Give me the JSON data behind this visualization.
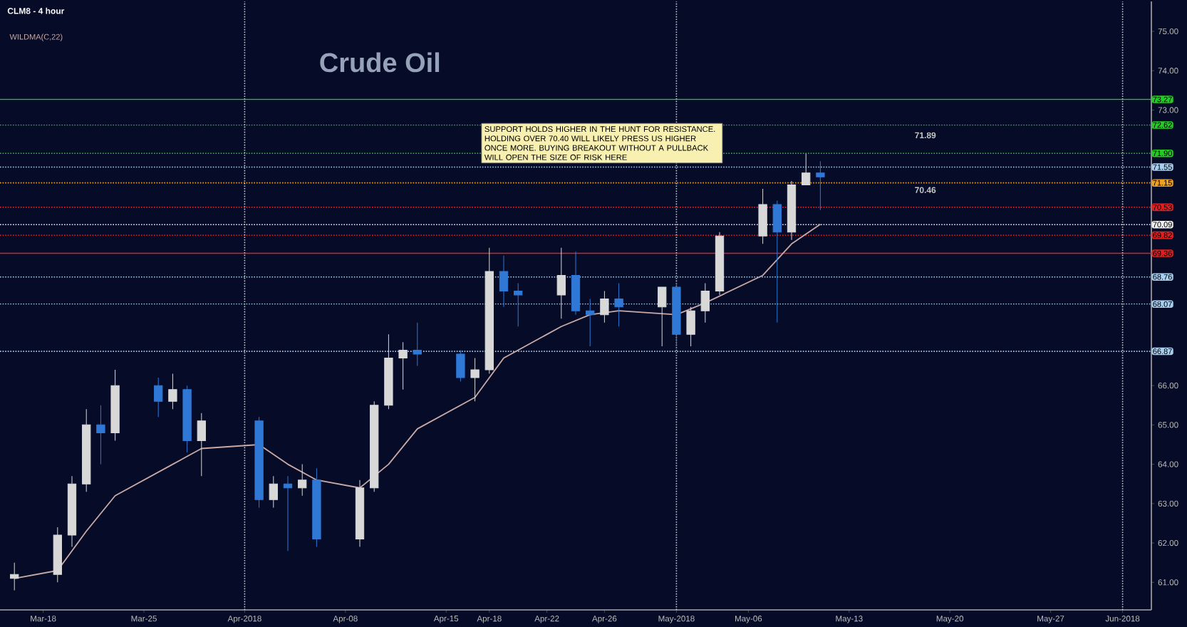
{
  "chart_data": {
    "type": "candlestick",
    "title": "Crude Oil",
    "subtitle": "CLM8 - 4 hour",
    "legend": "top left",
    "xlim": [
      "2018-03-15",
      "2018-06-03"
    ],
    "xticks": [
      {
        "value": "2018-03-18",
        "label": "Mar-18"
      },
      {
        "value": "2018-03-25",
        "label": "Mar-25"
      },
      {
        "value": "2018-04-01",
        "label": "Apr-2018"
      },
      {
        "value": "2018-04-08",
        "label": "Apr-08"
      },
      {
        "value": "2018-04-15",
        "label": "Apr-15"
      },
      {
        "value": "2018-04-18",
        "label": "Apr-18"
      },
      {
        "value": "2018-04-22",
        "label": "Apr-22"
      },
      {
        "value": "2018-04-26",
        "label": "Apr-26"
      },
      {
        "value": "2018-05-01",
        "label": "May-2018"
      },
      {
        "value": "2018-05-06",
        "label": "May-06"
      },
      {
        "value": "2018-05-13",
        "label": "May-13"
      },
      {
        "value": "2018-05-20",
        "label": "May-20"
      },
      {
        "value": "2018-05-27",
        "label": "May-27"
      },
      {
        "value": "2018-06-01",
        "label": "Jun-2018"
      }
    ],
    "ylim": [
      60.3,
      75.76
    ],
    "yticks": [
      {
        "value": 61,
        "label": "61.00"
      },
      {
        "value": 62,
        "label": "62.00"
      },
      {
        "value": 63,
        "label": "63.00"
      },
      {
        "value": 64,
        "label": "64.00"
      },
      {
        "value": 65,
        "label": "65.00"
      },
      {
        "value": 66,
        "label": "66.00"
      },
      {
        "value": 73,
        "label": "73.00"
      },
      {
        "value": 74,
        "label": "74.00"
      },
      {
        "value": 75,
        "label": "75.00"
      }
    ],
    "series": [
      {
        "type": "line",
        "name": "WILDMA(C,22)",
        "color": "#c9a9a6",
        "x": [
          "2018-03-16",
          "2018-03-19",
          "2018-03-21",
          "2018-03-23",
          "2018-03-27",
          "2018-03-29",
          "2018-04-02",
          "2018-04-04",
          "2018-04-06",
          "2018-04-09",
          "2018-04-11",
          "2018-04-13",
          "2018-04-17",
          "2018-04-19",
          "2018-04-23",
          "2018-04-25",
          "2018-04-27",
          "2018-05-01",
          "2018-05-03",
          "2018-05-07",
          "2018-05-09",
          "2018-05-11"
        ],
        "values": [
          61.1,
          61.3,
          62.3,
          63.2,
          64.0,
          64.4,
          64.5,
          64.0,
          63.6,
          63.4,
          64.0,
          64.9,
          65.7,
          66.7,
          67.5,
          67.8,
          67.9,
          67.8,
          68.1,
          68.8,
          69.6,
          70.1
        ]
      },
      {
        "x": [
          "2018-03-16",
          "2018-03-19",
          "2018-03-20",
          "2018-03-21",
          "2018-03-22",
          "2018-03-23",
          "2018-03-26",
          "2018-03-27",
          "2018-03-28",
          "2018-03-29",
          "2018-04-02",
          "2018-04-03",
          "2018-04-04",
          "2018-04-05",
          "2018-04-06",
          "2018-04-09",
          "2018-04-10",
          "2018-04-11",
          "2018-04-12",
          "2018-04-13",
          "2018-04-16",
          "2018-04-17",
          "2018-04-18",
          "2018-04-19",
          "2018-04-20",
          "2018-04-23",
          "2018-04-24",
          "2018-04-25",
          "2018-04-26",
          "2018-04-27",
          "2018-04-30",
          "2018-05-01",
          "2018-05-02",
          "2018-05-03",
          "2018-05-04",
          "2018-05-07",
          "2018-05-08",
          "2018-05-09",
          "2018-05-10",
          "2018-05-11"
        ],
        "ohlc": [
          [
            61.1,
            61.5,
            60.8,
            61.2
          ],
          [
            61.2,
            62.4,
            61.0,
            62.2
          ],
          [
            62.2,
            63.7,
            61.9,
            63.5
          ],
          [
            63.5,
            65.4,
            63.3,
            65.0
          ],
          [
            65.0,
            65.5,
            64.0,
            64.8
          ],
          [
            64.8,
            66.4,
            64.6,
            66.0
          ],
          [
            66.0,
            66.2,
            65.2,
            65.6
          ],
          [
            65.6,
            66.3,
            65.4,
            65.9
          ],
          [
            65.9,
            66.0,
            64.3,
            64.6
          ],
          [
            64.6,
            65.3,
            63.7,
            65.1
          ],
          [
            65.1,
            65.2,
            62.9,
            63.1
          ],
          [
            63.1,
            63.7,
            62.9,
            63.5
          ],
          [
            63.5,
            63.7,
            61.8,
            63.4
          ],
          [
            63.4,
            64.0,
            63.2,
            63.6
          ],
          [
            63.6,
            63.9,
            61.9,
            62.1
          ],
          [
            62.1,
            63.6,
            61.9,
            63.4
          ],
          [
            63.4,
            65.6,
            63.3,
            65.5
          ],
          [
            65.5,
            67.3,
            65.4,
            66.7
          ],
          [
            66.7,
            67.1,
            65.9,
            66.9
          ],
          [
            66.9,
            67.6,
            66.5,
            66.8
          ],
          [
            66.8,
            66.9,
            66.1,
            66.2
          ],
          [
            66.2,
            66.7,
            65.6,
            66.4
          ],
          [
            66.4,
            69.5,
            66.3,
            68.9
          ],
          [
            68.9,
            69.3,
            68.0,
            68.4
          ],
          [
            68.4,
            68.6,
            67.5,
            68.3
          ],
          [
            68.3,
            69.5,
            67.7,
            68.8
          ],
          [
            68.8,
            69.4,
            67.8,
            67.9
          ],
          [
            67.9,
            68.2,
            67.0,
            67.8
          ],
          [
            67.8,
            68.4,
            67.6,
            68.2
          ],
          [
            68.2,
            68.6,
            67.5,
            68.0
          ],
          [
            68.0,
            68.5,
            67.0,
            68.5
          ],
          [
            68.5,
            68.6,
            67.0,
            67.3
          ],
          [
            67.3,
            68.0,
            67.0,
            67.9
          ],
          [
            67.9,
            68.6,
            67.6,
            68.4
          ],
          [
            68.4,
            69.9,
            68.3,
            69.8
          ],
          [
            69.8,
            71.0,
            69.6,
            70.6
          ],
          [
            70.6,
            70.7,
            67.6,
            69.9
          ],
          [
            69.9,
            71.2,
            69.7,
            71.1
          ],
          [
            71.1,
            71.89,
            71.1,
            71.4
          ],
          [
            71.4,
            71.7,
            70.46,
            71.3
          ]
        ],
        "colors": [
          "#d8d8d8",
          "#d8d8d8",
          "#d8d8d8",
          "#d8d8d8",
          "#2f78d6",
          "#d8d8d8",
          "#2f78d6",
          "#d8d8d8",
          "#2f78d6",
          "#d8d8d8",
          "#2f78d6",
          "#d8d8d8",
          "#2f78d6",
          "#d8d8d8",
          "#2f78d6",
          "#d8d8d8",
          "#d8d8d8",
          "#d8d8d8",
          "#d8d8d8",
          "#2f78d6",
          "#2f78d6",
          "#d8d8d8",
          "#d8d8d8",
          "#2f78d6",
          "#2f78d6",
          "#d8d8d8",
          "#2f78d6",
          "#2f78d6",
          "#d8d8d8",
          "#2f78d6",
          "#d8d8d8",
          "#2f78d6",
          "#d8d8d8",
          "#d8d8d8",
          "#d8d8d8",
          "#d8d8d8",
          "#2f78d6",
          "#d8d8d8",
          "#d8d8d8",
          "#2f78d6"
        ]
      }
    ],
    "ref_lines": [
      {
        "axis": "y",
        "value": 73.27,
        "label": "73.27",
        "color": "#22cc22",
        "line_style": "solid"
      },
      {
        "axis": "y",
        "value": 72.62,
        "label": "72.62",
        "color": "#22cc22",
        "line_style": "dotted"
      },
      {
        "axis": "y",
        "value": 71.9,
        "label": "71.90",
        "color": "#22cc22",
        "line_style": "dotted"
      },
      {
        "axis": "y",
        "value": 71.55,
        "label": "71.55",
        "color": "#a8cff0",
        "line_style": "dotted"
      },
      {
        "axis": "y",
        "value": 71.15,
        "label": "71.15",
        "color": "#f0a020",
        "line_style": "dotted"
      },
      {
        "axis": "y",
        "value": 70.53,
        "label": "70.53",
        "color": "#e02020",
        "line_style": "dotted"
      },
      {
        "axis": "y",
        "value": 70.09,
        "label": "70.09",
        "color": "#f0f0f0",
        "line_style": "dotted"
      },
      {
        "axis": "y",
        "value": 69.82,
        "label": "69.82",
        "color": "#e02020",
        "line_style": "dotted"
      },
      {
        "axis": "y",
        "value": 69.36,
        "label": "69.36",
        "color": "#e02020",
        "line_style": "solid"
      },
      {
        "axis": "y",
        "value": 68.76,
        "label": "68.76",
        "color": "#a8cff0",
        "line_style": "dotted"
      },
      {
        "axis": "y",
        "value": 68.07,
        "label": "68.07",
        "color": "#a8cff0",
        "line_style": "dotted"
      },
      {
        "axis": "y",
        "value": 66.87,
        "label": "66.87",
        "color": "#a8cff0",
        "line_style": "dotted"
      },
      {
        "axis": "x",
        "value": "2018-04-01",
        "color": "#c8c8c8",
        "line_style": "dotted"
      },
      {
        "axis": "x",
        "value": "2018-05-01",
        "color": "#c8c8c8",
        "line_style": "dotted"
      },
      {
        "axis": "x",
        "value": "2018-06-01",
        "color": "#c8c8c8",
        "line_style": "dotted"
      }
    ],
    "annotations": [
      "SUPPORT HOLDS HIGHER IN THE HUNT FOR RESISTANCE.  HOLDING OVER 70.40 WILL LIKELY PRESS US HIGHER ONCE MORE.  BUYING BREAKOUT WITHOUT A PULLBACK WILL OPEN THE SIZE OF RISK HERE",
      "71.89",
      "70.46"
    ]
  }
}
